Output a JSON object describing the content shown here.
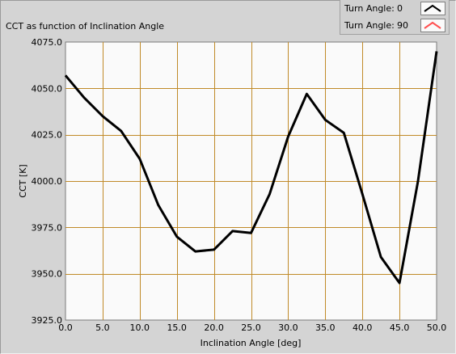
{
  "chart_data": {
    "type": "line",
    "title": "CCT as function of Inclination Angle",
    "xlabel": "Inclination Angle [deg]",
    "ylabel": "CCT [K]",
    "xlim": [
      0,
      50
    ],
    "ylim": [
      3925,
      4075
    ],
    "xticks": [
      "0.0",
      "5.0",
      "10.0",
      "15.0",
      "20.0",
      "25.0",
      "30.0",
      "35.0",
      "40.0",
      "45.0",
      "50.0"
    ],
    "yticks": [
      "3925.0",
      "3950.0",
      "3975.0",
      "4000.0",
      "4025.0",
      "4050.0",
      "4075.0"
    ],
    "grid": true,
    "legend_position": "top-right",
    "series": [
      {
        "name": "Turn Angle:",
        "value_label": "0",
        "color": "#000000",
        "x": [
          0,
          2.5,
          5,
          7.5,
          10,
          12.5,
          15,
          17.5,
          20,
          22.5,
          25,
          27.5,
          30,
          32.5,
          35,
          37.5,
          40,
          42.5,
          45,
          47.5,
          50
        ],
        "y": [
          4057,
          4045,
          4035,
          4027,
          4012,
          3987,
          3970,
          3962,
          3963,
          3973,
          3972,
          3993,
          4024,
          4047,
          4033,
          4026,
          3993,
          3959,
          3945,
          4000,
          4070
        ]
      },
      {
        "name": "Turn Angle:",
        "value_label": "90",
        "color": "#ff5050",
        "x": [],
        "y": []
      }
    ]
  },
  "colors": {
    "plot_background": "#fafafa",
    "grid": "#c08a28",
    "panel": "#d4d4d4"
  }
}
